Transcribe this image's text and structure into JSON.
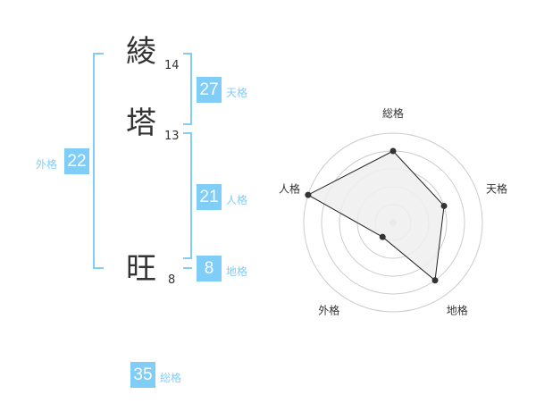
{
  "name": {
    "chars": [
      {
        "char": "綾",
        "strokes": "14"
      },
      {
        "char": "塔",
        "strokes": "13"
      },
      {
        "char": "旺",
        "strokes": "8"
      }
    ]
  },
  "grades": {
    "tenkaku": {
      "value": "27",
      "label": "天格"
    },
    "jinkaku": {
      "value": "21",
      "label": "人格"
    },
    "chikaku": {
      "value": "8",
      "label": "地格"
    },
    "gaikaku": {
      "value": "22",
      "label": "外格"
    },
    "soukaku": {
      "value": "35",
      "label": "総格"
    }
  },
  "colors": {
    "accent": "#80cdf8",
    "polygon_fill": "#efefef",
    "point": "#333333"
  },
  "chart_data": {
    "type": "radar",
    "axes": [
      "総格",
      "天格",
      "地格",
      "外格",
      "人格"
    ],
    "values": [
      4,
      3,
      4,
      1,
      5
    ],
    "range": [
      0,
      5
    ],
    "grid": "circular"
  }
}
